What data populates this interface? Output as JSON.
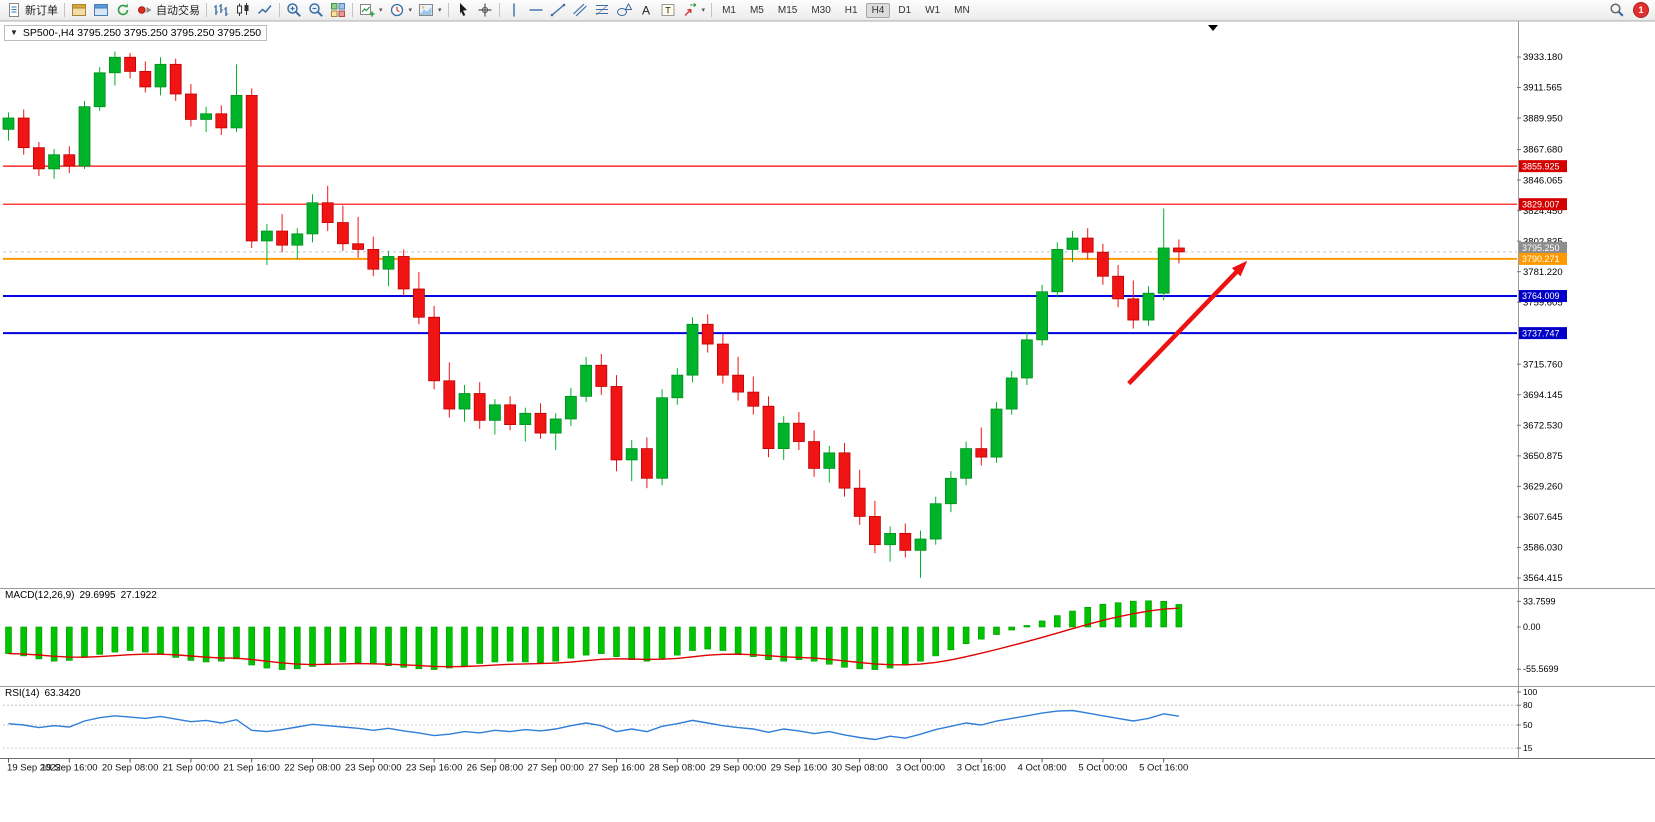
{
  "toolbar": {
    "items": [
      {
        "name": "new-order-button",
        "icon": "doc",
        "label": "新订单"
      },
      {
        "type": "sep"
      },
      {
        "name": "market-watch-button",
        "icon": "gold-window"
      },
      {
        "name": "metaeditor-button",
        "icon": "blue-window"
      },
      {
        "name": "refresh-button",
        "icon": "refresh"
      },
      {
        "name": "autotrade-button",
        "icon": "autotrade",
        "label": "自动交易"
      },
      {
        "type": "sep"
      },
      {
        "name": "bar-chart-button",
        "icon": "bars"
      },
      {
        "name": "candle-chart-button",
        "icon": "candles"
      },
      {
        "name": "line-chart-button",
        "icon": "linechart"
      },
      {
        "type": "sep"
      },
      {
        "name": "zoom-in-button",
        "icon": "zoom-in"
      },
      {
        "name": "zoom-out-button",
        "icon": "zoom-out"
      },
      {
        "name": "tile-windows-button",
        "icon": "tile"
      },
      {
        "type": "sep"
      },
      {
        "name": "new-chart-button",
        "icon": "newchart",
        "dd": true
      },
      {
        "name": "period-button",
        "icon": "clock",
        "dd": true
      },
      {
        "name": "template-button",
        "icon": "template",
        "dd": true
      },
      {
        "type": "sep"
      },
      {
        "name": "cursor-button",
        "icon": "cursor"
      },
      {
        "name": "crosshair-button",
        "icon": "crosshair"
      },
      {
        "type": "sep"
      },
      {
        "name": "vertical-line-button",
        "icon": "vline"
      },
      {
        "name": "horizontal-line-button",
        "icon": "hline"
      },
      {
        "name": "trendline-button",
        "icon": "trendline"
      },
      {
        "name": "channel-button",
        "icon": "channel"
      },
      {
        "name": "fibonacci-button",
        "icon": "fibo"
      },
      {
        "name": "shapes-button",
        "icon": "shapes"
      },
      {
        "name": "text-button",
        "icon": "textA"
      },
      {
        "name": "label-button",
        "icon": "textT"
      },
      {
        "name": "arrows-button",
        "icon": "arrows",
        "dd": true
      },
      {
        "type": "sep"
      }
    ],
    "timeframes": [
      "M1",
      "M5",
      "M15",
      "M30",
      "H1",
      "H4",
      "D1",
      "W1",
      "MN"
    ],
    "active_timeframe": "H4",
    "badge_count": "1"
  },
  "chart": {
    "symbol_line": "SP500-,H4 3795.250 3795.250 3795.250 3795.250"
  },
  "indicators": {
    "macd": {
      "label": "MACD(12,26,9)",
      "value1": "29.6995",
      "value2": "27.1922",
      "axis": [
        "33.7599",
        "0.00",
        "-55.5699"
      ]
    },
    "rsi": {
      "label": "RSI(14)",
      "value": "63.3420",
      "axis": [
        "100",
        "80",
        "50",
        "15"
      ]
    }
  },
  "chart_data": {
    "type": "candlestick",
    "symbol": "SP500-",
    "period": "H4",
    "current_price": 3795.25,
    "current_price_label": "3795.250",
    "colors": {
      "up": "#00b42a",
      "up_edge": "#008f1f",
      "down": "#f01414",
      "down_edge": "#c00000",
      "macd_bar": "#00c400",
      "macd_signal": "#e00000",
      "rsi_line": "#2f7ed8"
    },
    "price_ticks": [
      "3933.180",
      "3911.565",
      "3889.950",
      "3867.680",
      "3846.065",
      "3824.450",
      "3802.835",
      "3781.220",
      "3759.605",
      "3715.760",
      "3694.145",
      "3672.530",
      "3650.875",
      "3629.260",
      "3607.645",
      "3586.030",
      "3564.415"
    ],
    "time_labels": [
      "19 Sep 2022",
      "19 Sep 16:00",
      "20 Sep 08:00",
      "21 Sep 00:00",
      "21 Sep 16:00",
      "22 Sep 08:00",
      "23 Sep 00:00",
      "23 Sep 16:00",
      "26 Sep 08:00",
      "27 Sep 00:00",
      "27 Sep 16:00",
      "28 Sep 08:00",
      "29 Sep 00:00",
      "29 Sep 16:00",
      "30 Sep 08:00",
      "3 Oct 00:00",
      "3 Oct 16:00",
      "4 Oct 08:00",
      "5 Oct 00:00",
      "5 Oct 16:00"
    ],
    "hlines": [
      {
        "price": 3855.925,
        "color": "#ff0000",
        "width": 1.2,
        "label": "3855.925",
        "label_bg": "#d40000"
      },
      {
        "price": 3829.007,
        "color": "#ff0000",
        "width": 1.2,
        "label": "3829.007",
        "label_bg": "#d40000"
      },
      {
        "price": 3790.271,
        "color": "#ff9a00",
        "width": 2,
        "label": "3790.271",
        "label_bg": "#ff9a00"
      },
      {
        "price": 3764.009,
        "color": "#0000e0",
        "width": 2,
        "label": "3764.009",
        "label_bg": "#0000c8"
      },
      {
        "price": 3737.747,
        "color": "#0000e0",
        "width": 2,
        "label": "3737.747",
        "label_bg": "#0000c8"
      }
    ],
    "arrow": {
      "from_index": 73.7,
      "from_price": 3702,
      "to_index": 81.5,
      "to_price": 3789,
      "color": "#ee1111"
    },
    "candles": [
      [
        3882,
        3894,
        3874,
        3890
      ],
      [
        3890,
        3896,
        3864,
        3869
      ],
      [
        3869,
        3873,
        3849,
        3854
      ],
      [
        3854,
        3868,
        3847,
        3864
      ],
      [
        3864,
        3870,
        3851,
        3856
      ],
      [
        3856,
        3902,
        3854,
        3898
      ],
      [
        3898,
        3926,
        3895,
        3922
      ],
      [
        3922,
        3937,
        3913,
        3933
      ],
      [
        3933,
        3936,
        3918,
        3923
      ],
      [
        3923,
        3930,
        3908,
        3912
      ],
      [
        3912,
        3933,
        3906,
        3928
      ],
      [
        3928,
        3932,
        3902,
        3907
      ],
      [
        3907,
        3914,
        3884,
        3889
      ],
      [
        3889,
        3898,
        3880,
        3893
      ],
      [
        3893,
        3899,
        3878,
        3883
      ],
      [
        3883,
        3928,
        3880,
        3906
      ],
      [
        3906,
        3911,
        3798,
        3803
      ],
      [
        3803,
        3815,
        3786,
        3810
      ],
      [
        3810,
        3822,
        3795,
        3800
      ],
      [
        3800,
        3812,
        3790,
        3808
      ],
      [
        3808,
        3836,
        3802,
        3830
      ],
      [
        3830,
        3842,
        3810,
        3816
      ],
      [
        3816,
        3828,
        3796,
        3801
      ],
      [
        3801,
        3820,
        3791,
        3797
      ],
      [
        3797,
        3806,
        3778,
        3783
      ],
      [
        3783,
        3796,
        3771,
        3792
      ],
      [
        3792,
        3797,
        3764,
        3769
      ],
      [
        3769,
        3781,
        3744,
        3749
      ],
      [
        3749,
        3757,
        3698,
        3704
      ],
      [
        3704,
        3717,
        3678,
        3684
      ],
      [
        3684,
        3701,
        3675,
        3695
      ],
      [
        3695,
        3703,
        3670,
        3676
      ],
      [
        3676,
        3691,
        3666,
        3687
      ],
      [
        3687,
        3693,
        3669,
        3673
      ],
      [
        3673,
        3685,
        3661,
        3681
      ],
      [
        3681,
        3688,
        3663,
        3667
      ],
      [
        3667,
        3681,
        3655,
        3677
      ],
      [
        3677,
        3699,
        3672,
        3693
      ],
      [
        3693,
        3721,
        3689,
        3715
      ],
      [
        3715,
        3723,
        3694,
        3700
      ],
      [
        3700,
        3708,
        3640,
        3648
      ],
      [
        3648,
        3662,
        3633,
        3656
      ],
      [
        3656,
        3664,
        3628,
        3635
      ],
      [
        3635,
        3698,
        3630,
        3692
      ],
      [
        3692,
        3713,
        3687,
        3708
      ],
      [
        3708,
        3749,
        3703,
        3744
      ],
      [
        3744,
        3751,
        3724,
        3730
      ],
      [
        3730,
        3737,
        3702,
        3708
      ],
      [
        3708,
        3721,
        3690,
        3696
      ],
      [
        3696,
        3707,
        3680,
        3686
      ],
      [
        3686,
        3693,
        3650,
        3656
      ],
      [
        3656,
        3679,
        3648,
        3674
      ],
      [
        3674,
        3682,
        3655,
        3661
      ],
      [
        3661,
        3669,
        3636,
        3642
      ],
      [
        3642,
        3658,
        3632,
        3653
      ],
      [
        3653,
        3660,
        3622,
        3628
      ],
      [
        3628,
        3641,
        3602,
        3608
      ],
      [
        3608,
        3619,
        3582,
        3588
      ],
      [
        3588,
        3601,
        3576,
        3596
      ],
      [
        3596,
        3603,
        3579,
        3584
      ],
      [
        3584,
        3598,
        3564.5,
        3592
      ],
      [
        3592,
        3622,
        3588,
        3617
      ],
      [
        3617,
        3640,
        3611,
        3635
      ],
      [
        3635,
        3661,
        3630,
        3656
      ],
      [
        3656,
        3671,
        3644,
        3650
      ],
      [
        3650,
        3689,
        3646,
        3684
      ],
      [
        3684,
        3711,
        3680,
        3706
      ],
      [
        3706,
        3738,
        3701,
        3733
      ],
      [
        3733,
        3772,
        3729,
        3767
      ],
      [
        3767,
        3802,
        3763,
        3797
      ],
      [
        3797,
        3810,
        3788,
        3805
      ],
      [
        3805,
        3812,
        3790,
        3795
      ],
      [
        3795,
        3801,
        3772,
        3778
      ],
      [
        3778,
        3786,
        3756,
        3762
      ],
      [
        3762,
        3775,
        3741,
        3747
      ],
      [
        3747,
        3771,
        3743,
        3766
      ],
      [
        3766,
        3826,
        3761,
        3798
      ],
      [
        3798,
        3804,
        3787,
        3795.25
      ]
    ],
    "macd_values": [
      -35,
      -38,
      -42,
      -45,
      -44,
      -40,
      -36,
      -33,
      -31,
      -33,
      -36,
      -40,
      -44,
      -46,
      -45,
      -42,
      -50,
      -54,
      -56,
      -55,
      -52,
      -48,
      -46,
      -47,
      -49,
      -51,
      -53,
      -55,
      -56,
      -54,
      -51,
      -48,
      -46,
      -45,
      -46,
      -47,
      -45,
      -41,
      -37,
      -35,
      -39,
      -43,
      -45,
      -41,
      -37,
      -31,
      -29,
      -31,
      -35,
      -39,
      -43,
      -45,
      -43,
      -45,
      -49,
      -53,
      -55,
      -56,
      -54,
      -50,
      -45,
      -38,
      -30,
      -22,
      -16,
      -10,
      -4,
      2,
      8,
      15,
      21,
      26,
      30,
      32,
      34,
      34.5,
      33.8,
      29.7
    ],
    "rsi_values": [
      52,
      50,
      46,
      49,
      47,
      56,
      61,
      64,
      62,
      60,
      63,
      59,
      55,
      57,
      53,
      58,
      42,
      40,
      43,
      47,
      51,
      49,
      47,
      45,
      42,
      45,
      41,
      38,
      34,
      36,
      40,
      38,
      42,
      40,
      43,
      41,
      44,
      49,
      53,
      49,
      40,
      44,
      40,
      48,
      52,
      57,
      53,
      49,
      46,
      44,
      39,
      44,
      41,
      37,
      40,
      35,
      31,
      28,
      33,
      30,
      36,
      43,
      48,
      53,
      50,
      56,
      60,
      64,
      68,
      71,
      72,
      68,
      64,
      60,
      56,
      60,
      67,
      63.3
    ]
  }
}
